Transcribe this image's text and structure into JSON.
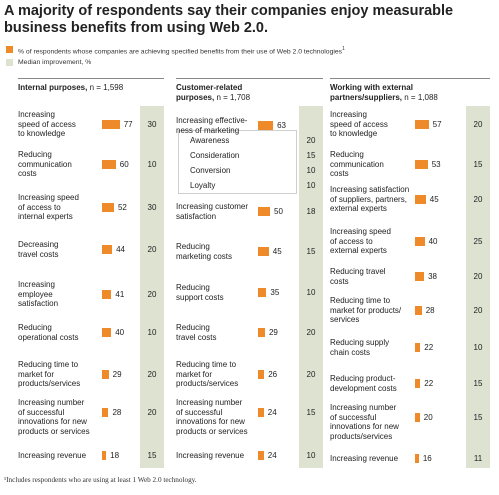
{
  "title": "A majority of respondents say their companies enjoy measurable business benefits from using Web 2.0.",
  "legend": {
    "bar_label": "% of respondents whose companies are achieving specified benefits from their use of Web 2.0 technologies",
    "bar_sup": "1",
    "median_label": "Median improvement, %",
    "bar_color": "#ef8a2a",
    "median_color": "#dde2d1"
  },
  "footnote": "¹Includes respondents who are using at least 1 Web 2.0 technology.",
  "chart_data": [
    {
      "type": "bar",
      "title": "Internal purposes,",
      "n": "n = 1,598",
      "categories": [
        "Increasing speed of access to knowledge",
        "Reducing communication costs",
        "Increasing speed of access to internal experts",
        "Decreasing travel costs",
        "Increasing employee satisfaction",
        "Reducing operational costs",
        "Reducing time to market for products/services",
        "Increasing number of successful innovations for new products or services",
        "Increasing revenue"
      ],
      "label_lines": [
        [
          "Increasing",
          "speed of access",
          "to knowledge"
        ],
        [
          "Reducing",
          "communication",
          "costs"
        ],
        [
          "Increasing speed",
          "of access to",
          "internal experts"
        ],
        [
          "Decreasing",
          "travel costs"
        ],
        [
          "Increasing",
          "employee",
          "satisfaction"
        ],
        [
          "Reducing",
          "operational costs"
        ],
        [
          "Reducing time to",
          "market for",
          "products/services"
        ],
        [
          "Increasing number",
          "of successful",
          "innovations for new",
          "products or services"
        ],
        [
          "Increasing revenue"
        ]
      ],
      "values": [
        77,
        60,
        52,
        44,
        41,
        40,
        29,
        28,
        18
      ],
      "medians": [
        30,
        10,
        30,
        20,
        20,
        10,
        20,
        20,
        15
      ]
    },
    {
      "type": "bar",
      "title": "Customer-related purposes,",
      "title_lines": [
        "Customer-related",
        "purposes,"
      ],
      "n": "n = 1,708",
      "categories": [
        "Increasing effectiveness of marketing",
        "Increasing customer satisfaction",
        "Reducing marketing costs",
        "Reducing support costs",
        "Reducing travel costs",
        "Reducing time to market for products/services",
        "Increasing number of successful innovations for new products or services",
        "Increasing revenue"
      ],
      "label_lines": [
        [
          "Increasing effective-",
          "ness of marketing"
        ],
        [
          "Increasing customer",
          "satisfaction"
        ],
        [
          "Reducing",
          "marketing costs"
        ],
        [
          "Reducing",
          "support costs"
        ],
        [
          "Reducing",
          "travel costs"
        ],
        [
          "Reducing time to",
          "market for",
          "products/services"
        ],
        [
          "Increasing number",
          "of successful",
          "innovations for new",
          "products or services"
        ],
        [
          "Increasing revenue"
        ]
      ],
      "values": [
        63,
        50,
        45,
        35,
        29,
        26,
        24,
        24
      ],
      "medians": [
        null,
        18,
        15,
        10,
        20,
        20,
        15,
        10
      ],
      "marketing_breakdown": [
        {
          "label": "Awareness",
          "median": 20
        },
        {
          "label": "Consideration",
          "median": 15
        },
        {
          "label": "Conversion",
          "median": 10
        },
        {
          "label": "Loyalty",
          "median": 10
        }
      ]
    },
    {
      "type": "bar",
      "title": "Working with external partners/suppliers,",
      "title_lines": [
        "Working with external",
        "partners/suppliers,"
      ],
      "n": "n = 1,088",
      "categories": [
        "Increasing speed of access to knowledge",
        "Reducing communication costs",
        "Increasing satisfaction of suppliers, partners, external experts",
        "Increasing speed of access to external experts",
        "Reducing travel costs",
        "Reducing time to market for products/services",
        "Reducing supply chain costs",
        "Reducing product-development costs",
        "Increasing number of successful innovations for new products/services",
        "Increasing revenue"
      ],
      "label_lines": [
        [
          "Increasing",
          "speed of access",
          "to knowledge"
        ],
        [
          "Reducing",
          "communication",
          "costs"
        ],
        [
          "Increasing satisfaction",
          "of suppliers, partners,",
          "external experts"
        ],
        [
          "Increasing speed",
          "of access to",
          "external experts"
        ],
        [
          "Reducing travel",
          "costs"
        ],
        [
          "Reducing time to",
          "market for products/",
          "services"
        ],
        [
          "Reducing supply",
          "chain costs"
        ],
        [
          "Reducing product-",
          "development costs"
        ],
        [
          "Increasing number",
          "of successful",
          "innovations for new",
          "products/services"
        ],
        [
          "Increasing revenue"
        ]
      ],
      "values": [
        57,
        53,
        45,
        40,
        38,
        28,
        22,
        22,
        20,
        16
      ],
      "medians": [
        20,
        15,
        20,
        25,
        20,
        20,
        10,
        15,
        15,
        11
      ]
    }
  ]
}
